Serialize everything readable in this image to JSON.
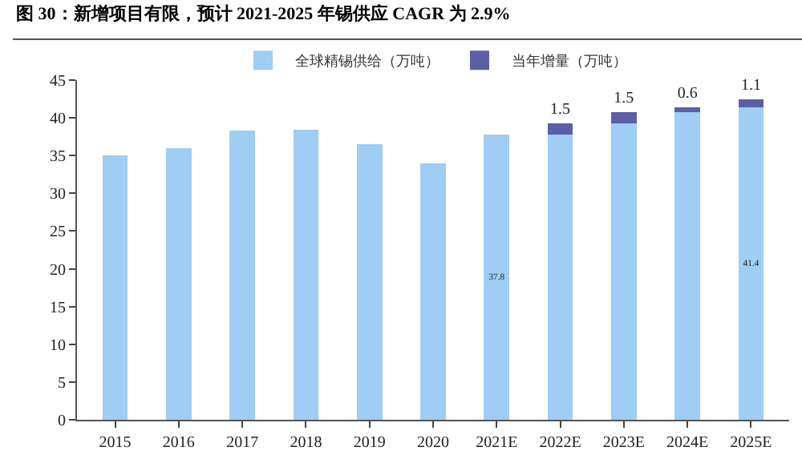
{
  "chart_data": {
    "type": "bar",
    "title": "图 30：新增项目有限，预计 2021-2025 年锡供应 CAGR 为 2.9%",
    "categories": [
      "2015",
      "2016",
      "2017",
      "2018",
      "2019",
      "2020",
      "2021E",
      "2022E",
      "2023E",
      "2024E",
      "2025E"
    ],
    "stacked": true,
    "series": [
      {
        "name": "全球精锡供给（万吨）",
        "color": "#9fcdf3",
        "values": [
          35,
          36,
          38.3,
          38.4,
          36.5,
          34,
          37.8,
          37.8,
          39.3,
          40.8,
          41.4
        ],
        "value_labels": [
          null,
          null,
          null,
          null,
          null,
          null,
          "37.8",
          null,
          null,
          null,
          "41.4"
        ]
      },
      {
        "name": "当年增量（万吨）",
        "color": "#5b5ea8",
        "values": [
          null,
          null,
          null,
          null,
          null,
          null,
          null,
          1.5,
          1.5,
          0.6,
          1.1
        ],
        "value_labels": [
          null,
          null,
          null,
          null,
          null,
          null,
          null,
          "1.5",
          "1.5",
          "0.6",
          "1.1"
        ]
      }
    ],
    "ylim": [
      0,
      45
    ],
    "yticks": [
      0,
      5,
      10,
      15,
      20,
      25,
      30,
      35,
      40,
      45
    ],
    "grid": false,
    "legend": "top"
  }
}
